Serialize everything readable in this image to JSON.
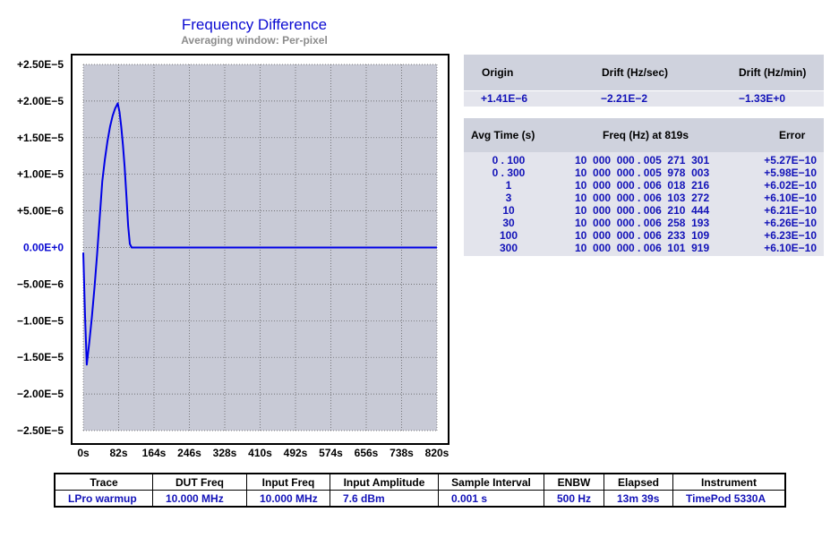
{
  "chart_data": {
    "type": "line",
    "title": "Frequency Difference",
    "subtitle": "Averaging window: Per-pixel",
    "xlabel": "",
    "ylabel": "",
    "xlim": [
      0,
      820
    ],
    "ylim": [
      -2.5e-05,
      2.5e-05
    ],
    "x_ticks": [
      "0s",
      "82s",
      "164s",
      "246s",
      "328s",
      "410s",
      "492s",
      "574s",
      "656s",
      "738s",
      "820s"
    ],
    "y_ticks": [
      "+2.50E−5",
      "+2.00E−5",
      "+1.50E−5",
      "+1.00E−5",
      "+5.00E−6",
      "0.00E+0",
      "−5.00E−6",
      "−1.00E−5",
      "−1.50E−5",
      "−2.00E−5",
      "−2.50E−5"
    ],
    "grid": true,
    "series": [
      {
        "color": "#0000e6",
        "x": [
          0,
          4,
          8,
          14,
          20,
          26,
          32,
          38,
          44,
          50,
          56,
          62,
          68,
          74,
          80,
          84,
          88,
          92,
          96,
          100,
          104,
          108,
          112,
          116,
          120,
          140,
          820
        ],
        "y": [
          -7e-07,
          -9e-06,
          -1.6e-05,
          -1.3e-05,
          -9.5e-06,
          -5.5e-06,
          -1e-06,
          4e-06,
          9e-06,
          1.2e-05,
          1.45e-05,
          1.65e-05,
          1.8e-05,
          1.9e-05,
          1.97e-05,
          1.85e-05,
          1.65e-05,
          1.4e-05,
          1.1e-05,
          7e-06,
          3e-06,
          5e-07,
          0.0,
          0.0,
          0.0,
          0.0,
          0.0
        ]
      }
    ]
  },
  "colors": {
    "plot_bg": "#c8cad6",
    "trace": "#0000e6",
    "zero_label": "#0a0ad2",
    "label_dark": "#000000",
    "value_blue": "#1212b8"
  },
  "drift": {
    "headers": [
      "Origin",
      "Drift (Hz/sec)",
      "Drift (Hz/min)"
    ],
    "values": [
      "+1.41E−6",
      "−2.21E−2",
      "−1.33E+0"
    ]
  },
  "avg_table": {
    "headers": [
      "Avg Time (s)",
      "Freq (Hz) at 819s",
      "Error"
    ],
    "rows": [
      {
        "time": "0 . 100",
        "freq": "10  000  000 . 005  271  301",
        "error": "+5.27E−10"
      },
      {
        "time": "0 . 300",
        "freq": "10  000  000 . 005  978  003",
        "error": "+5.98E−10"
      },
      {
        "time": "1",
        "freq": "10  000  000 . 006  018  216",
        "error": "+6.02E−10"
      },
      {
        "time": "3",
        "freq": "10  000  000 . 006  103  272",
        "error": "+6.10E−10"
      },
      {
        "time": "10",
        "freq": "10  000  000 . 006  210  444",
        "error": "+6.21E−10"
      },
      {
        "time": "30",
        "freq": "10  000  000 . 006  258  193",
        "error": "+6.26E−10"
      },
      {
        "time": "100",
        "freq": "10  000  000 . 006  233  109",
        "error": "+6.23E−10"
      },
      {
        "time": "300",
        "freq": "10  000  000 . 006  101  919",
        "error": "+6.10E−10"
      }
    ]
  },
  "info_table": {
    "headers": [
      "Trace",
      "DUT Freq",
      "Input Freq",
      "Input Amplitude",
      "Sample Interval",
      "ENBW",
      "Elapsed",
      "Instrument"
    ],
    "values": [
      "LPro warmup",
      "10.000 MHz",
      "10.000 MHz",
      "7.6 dBm",
      "0.001 s",
      "500 Hz",
      "13m 39s",
      "TimePod 5330A"
    ]
  }
}
